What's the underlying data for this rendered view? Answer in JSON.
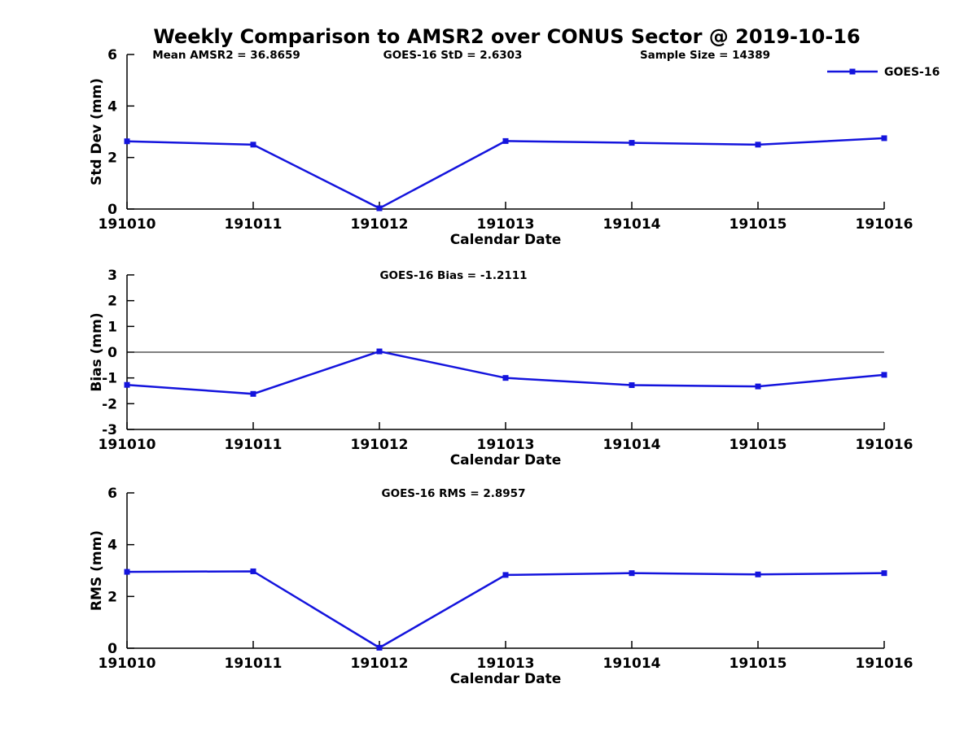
{
  "title": "Weekly Comparison to AMSR2 over CONUS Sector @ 2019-10-16",
  "colors": {
    "series": "#1414dd",
    "axis": "#000000",
    "zero_line": "#000000",
    "background": "#ffffff",
    "text": "#000000"
  },
  "legend": {
    "label": "GOES-16",
    "position": "top-right",
    "visible_on": "first-subplot"
  },
  "chart_data": [
    {
      "type": "line",
      "id": "std-dev",
      "title": "",
      "xlabel": "Calendar Date",
      "ylabel": "Std Dev (mm)",
      "categories": [
        "191010",
        "191011",
        "191012",
        "191013",
        "191014",
        "191015",
        "191016"
      ],
      "series": [
        {
          "name": "GOES-16",
          "values": [
            2.63,
            2.5,
            0.03,
            2.64,
            2.57,
            2.5,
            2.75
          ]
        }
      ],
      "ylim": [
        0,
        6
      ],
      "yticks": [
        0,
        2,
        4,
        6
      ],
      "grid": false,
      "zero_line": false,
      "legend_visible": true,
      "annotations": [
        "Mean AMSR2 = 36.8659",
        "GOES-16 StD = 2.6303",
        "Sample Size = 14389"
      ]
    },
    {
      "type": "line",
      "id": "bias",
      "title": "",
      "xlabel": "Calendar Date",
      "ylabel": "Bias (mm)",
      "categories": [
        "191010",
        "191011",
        "191012",
        "191013",
        "191014",
        "191015",
        "191016"
      ],
      "series": [
        {
          "name": "GOES-16",
          "values": [
            -1.27,
            -1.62,
            0.03,
            -1.0,
            -1.28,
            -1.33,
            -0.88
          ]
        }
      ],
      "ylim": [
        -3,
        3
      ],
      "yticks": [
        -3,
        -2,
        -1,
        0,
        1,
        2,
        3
      ],
      "grid": false,
      "zero_line": true,
      "legend_visible": false,
      "annotations": [
        "GOES-16 Bias  = -1.2111"
      ]
    },
    {
      "type": "line",
      "id": "rms",
      "title": "",
      "xlabel": "Calendar Date",
      "ylabel": "RMS (mm)",
      "categories": [
        "191010",
        "191011",
        "191012",
        "191013",
        "191014",
        "191015",
        "191016"
      ],
      "series": [
        {
          "name": "GOES-16",
          "values": [
            2.95,
            2.97,
            0.02,
            2.83,
            2.9,
            2.85,
            2.9
          ]
        }
      ],
      "ylim": [
        0,
        6
      ],
      "yticks": [
        0,
        2,
        4,
        6
      ],
      "grid": false,
      "zero_line": false,
      "legend_visible": false,
      "annotations": [
        "GOES-16 RMS = 2.8957"
      ]
    }
  ]
}
